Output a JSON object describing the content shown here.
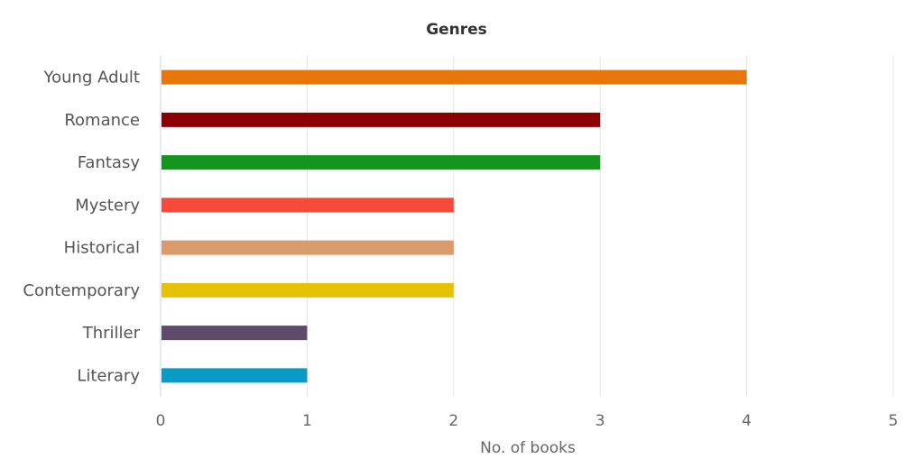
{
  "chart_data": {
    "type": "bar",
    "orientation": "horizontal",
    "title": "Genres",
    "xlabel": "No. of books",
    "ylabel": "",
    "categories": [
      "Young Adult",
      "Romance",
      "Fantasy",
      "Mystery",
      "Historical",
      "Contemporary",
      "Thriller",
      "Literary"
    ],
    "values": [
      4,
      3,
      3,
      2,
      2,
      2,
      1,
      1
    ],
    "colors": [
      "#e8770a",
      "#8b0000",
      "#14951e",
      "#f74a3a",
      "#d99a6c",
      "#e6c207",
      "#5e4a6b",
      "#0a9ac6"
    ],
    "xlim": [
      0,
      5
    ],
    "xticks": [
      0,
      1,
      2,
      3,
      4,
      5
    ],
    "grid": "vertical",
    "legend": "none"
  }
}
